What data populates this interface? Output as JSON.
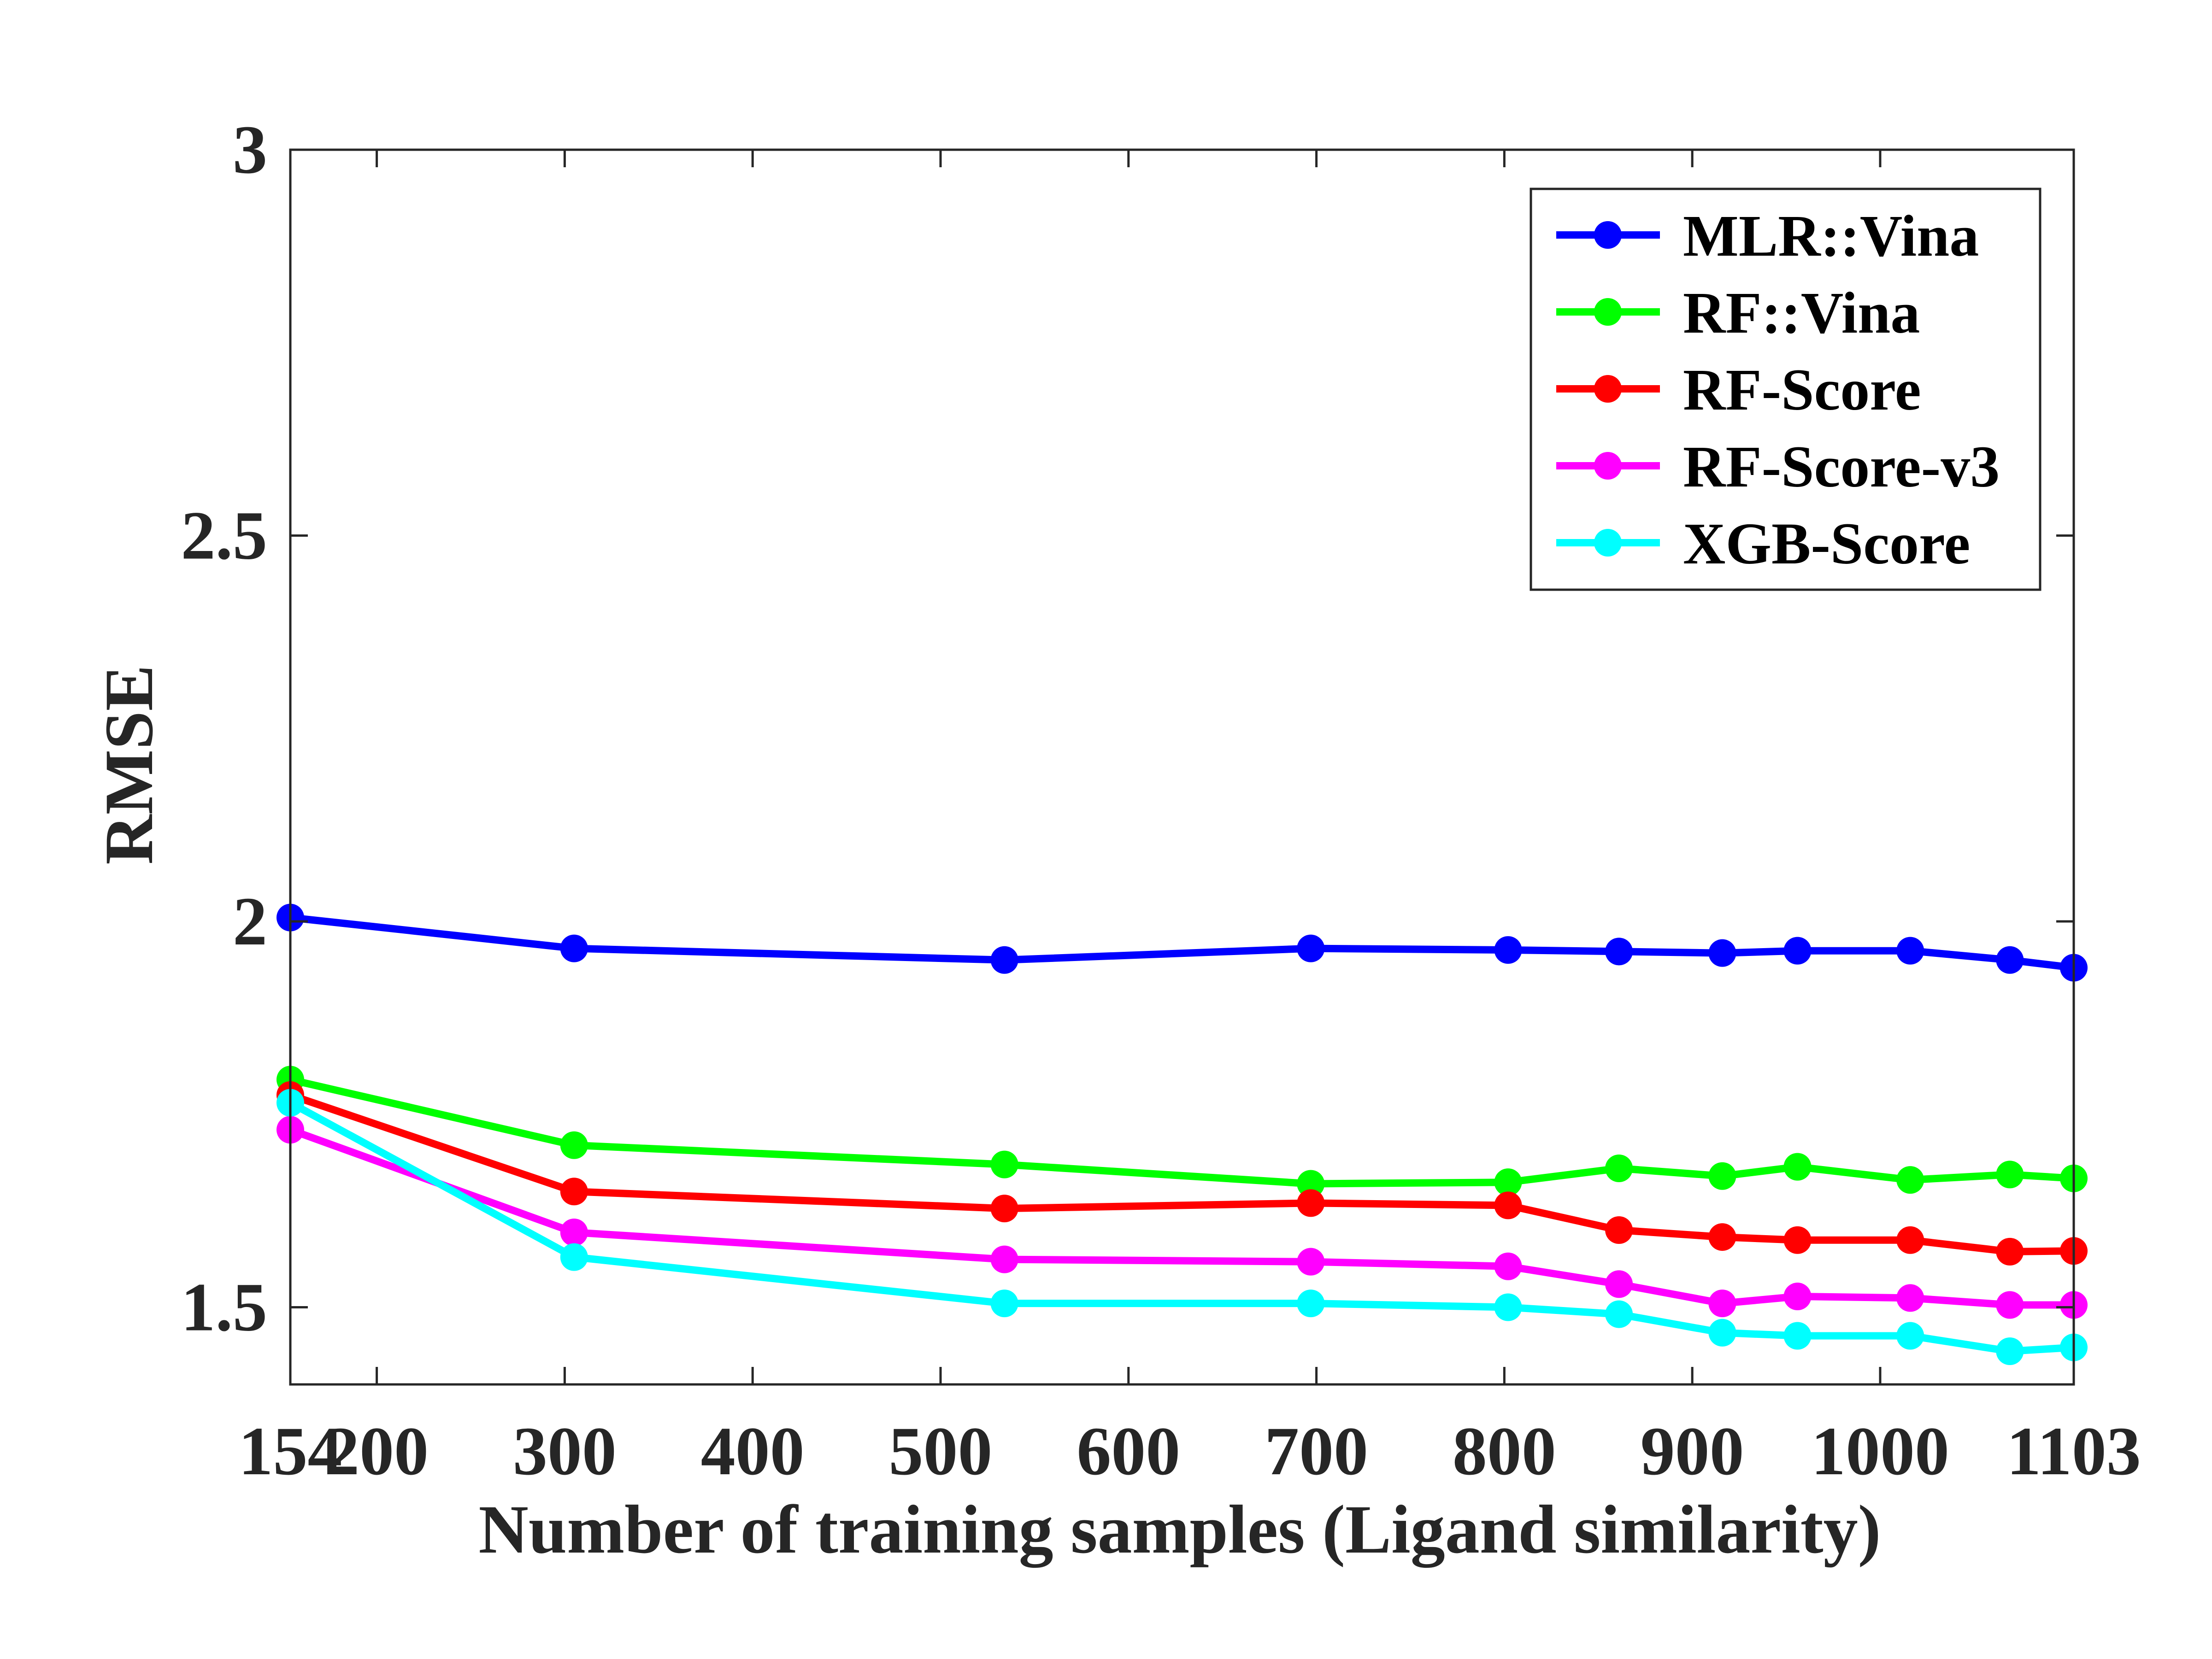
{
  "chart_data": {
    "type": "line",
    "xlabel": "Number of training samples (Ligand similarity)",
    "ylabel": "RMSE",
    "xlim": [
      154,
      1103
    ],
    "ylim": [
      1.4,
      3.0
    ],
    "xticks": [
      154,
      200,
      300,
      400,
      500,
      600,
      700,
      800,
      900,
      1000,
      1103
    ],
    "yticks": [
      1.5,
      2.0,
      2.5,
      3.0
    ],
    "ytick_labels": [
      "1.5",
      "2",
      "2.5",
      "3"
    ],
    "grid": false,
    "legend_position": "top-right",
    "x": [
      154,
      305,
      534,
      697,
      802,
      861,
      916,
      956,
      1016,
      1069,
      1103
    ],
    "series": [
      {
        "name": "MLR::Vina",
        "color": "#0000ff",
        "values": [
          2.005,
          1.965,
          1.95,
          1.965,
          1.963,
          1.961,
          1.959,
          1.962,
          1.962,
          1.95,
          1.94
        ]
      },
      {
        "name": "RF::Vina",
        "color": "#00ff00",
        "values": [
          1.795,
          1.71,
          1.685,
          1.66,
          1.662,
          1.68,
          1.67,
          1.682,
          1.665,
          1.672,
          1.667
        ]
      },
      {
        "name": "RF-Score",
        "color": "#ff0000",
        "values": [
          1.775,
          1.65,
          1.628,
          1.635,
          1.632,
          1.6,
          1.591,
          1.587,
          1.587,
          1.572,
          1.573
        ]
      },
      {
        "name": "RF-Score-v3",
        "color": "#ff00ff",
        "values": [
          1.73,
          1.597,
          1.562,
          1.559,
          1.553,
          1.53,
          1.505,
          1.514,
          1.512,
          1.503,
          1.503
        ]
      },
      {
        "name": "XGB-Score",
        "color": "#00ffff",
        "values": [
          1.765,
          1.565,
          1.505,
          1.505,
          1.5,
          1.491,
          1.467,
          1.463,
          1.463,
          1.443,
          1.448
        ]
      }
    ]
  }
}
